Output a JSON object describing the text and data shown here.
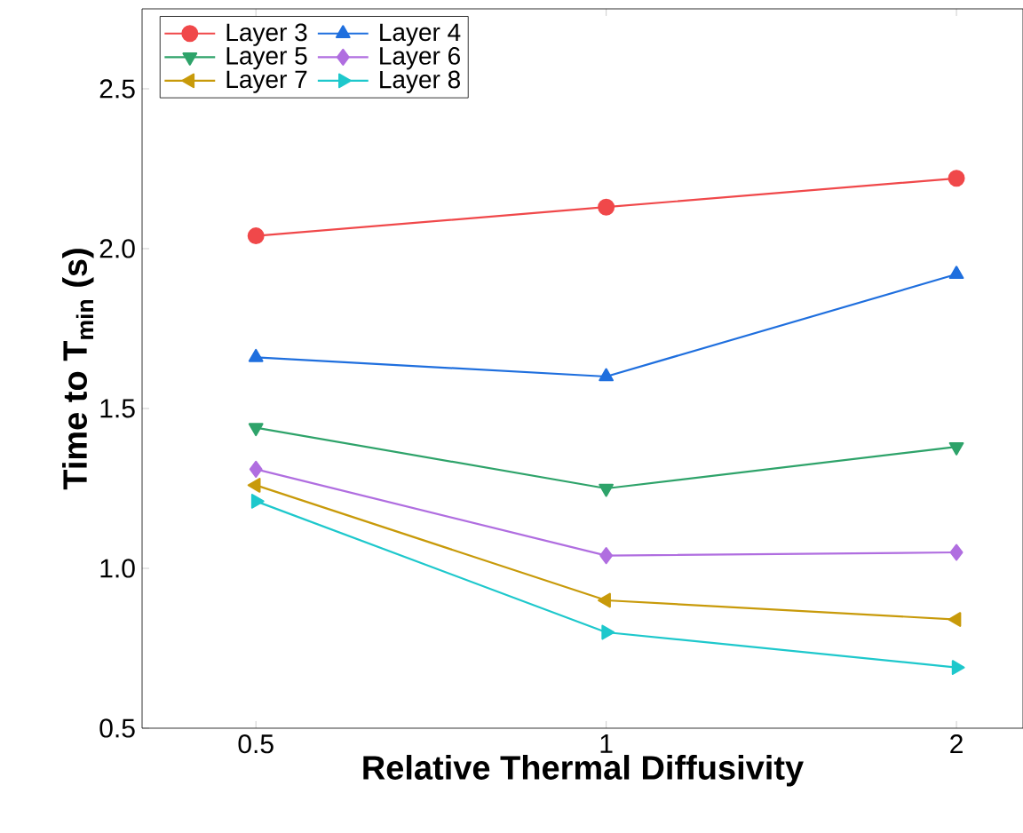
{
  "chart_data": {
    "type": "line",
    "xlabel": "Relative Thermal Diffusivity",
    "ylabel": "Time to T$_{min}$ (s)",
    "categories": [
      "0.5",
      "1",
      "2"
    ],
    "ylim": [
      0.5,
      2.75
    ],
    "yticks": [
      0.5,
      {
        "value": 1,
        "label": "1.0"
      },
      1.5,
      {
        "value": 2,
        "label": "2.0"
      },
      2.5
    ],
    "legend": "top left",
    "grid": false,
    "series": [
      {
        "name": "Layer 3",
        "color": "#f0484a",
        "marker": "circle",
        "values": [
          2.04,
          2.13,
          2.22
        ]
      },
      {
        "name": "Layer 4",
        "color": "#1f6fde",
        "marker": "triangle",
        "values": [
          1.66,
          1.6,
          1.92
        ]
      },
      {
        "name": "Layer 5",
        "color": "#2ea36a",
        "marker": "triangle down",
        "values": [
          1.44,
          1.25,
          1.38
        ]
      },
      {
        "name": "Layer 6",
        "color": "#b06ee0",
        "marker": "diamond",
        "values": [
          1.31,
          1.04,
          1.05
        ]
      },
      {
        "name": "Layer 7",
        "color": "#c89a0a",
        "marker": "triangle left",
        "values": [
          1.26,
          0.9,
          0.84
        ]
      },
      {
        "name": "Layer 8",
        "color": "#1ec8cc",
        "marker": "triangle right",
        "values": [
          1.21,
          0.8,
          0.69
        ]
      }
    ]
  }
}
